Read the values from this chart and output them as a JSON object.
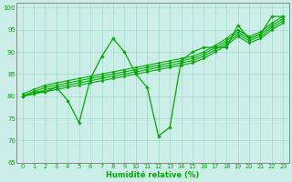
{
  "xlabel": "Humidité relative (%)",
  "xlim": [
    -0.5,
    23.5
  ],
  "ylim": [
    65,
    101
  ],
  "yticks": [
    65,
    70,
    75,
    80,
    85,
    90,
    95,
    100
  ],
  "xticks": [
    0,
    1,
    2,
    3,
    4,
    5,
    6,
    7,
    8,
    9,
    10,
    11,
    12,
    13,
    14,
    15,
    16,
    17,
    18,
    19,
    20,
    21,
    22,
    23
  ],
  "bg_color": "#cceee8",
  "grid_color": "#aaddcc",
  "line_color": "#00aa00",
  "zigzag": [
    80,
    81,
    81,
    82,
    79,
    74,
    84,
    89,
    93,
    90,
    85,
    82,
    71,
    73,
    88,
    90,
    91,
    91,
    91,
    96,
    93,
    94,
    98,
    98
  ],
  "trend_lines": [
    [
      80.5,
      81.5,
      82.5,
      83.0,
      83.5,
      84.0,
      84.5,
      85.0,
      85.5,
      86.0,
      86.5,
      87.0,
      87.5,
      88.0,
      88.5,
      89.0,
      90.0,
      91.5,
      93.0,
      95.0,
      93.5,
      94.5,
      96.5,
      98.0
    ],
    [
      80.0,
      81.0,
      82.0,
      82.5,
      83.0,
      83.5,
      84.0,
      84.5,
      85.0,
      85.5,
      86.0,
      86.5,
      87.0,
      87.5,
      88.0,
      88.5,
      89.5,
      91.0,
      92.5,
      94.5,
      93.0,
      94.0,
      96.0,
      97.5
    ],
    [
      80.0,
      80.5,
      81.5,
      82.0,
      82.5,
      83.0,
      83.5,
      84.0,
      84.5,
      85.0,
      85.5,
      86.0,
      86.5,
      87.0,
      87.5,
      88.0,
      89.0,
      90.5,
      92.0,
      94.0,
      92.5,
      93.5,
      95.5,
      97.0
    ],
    [
      80.0,
      80.5,
      81.0,
      81.5,
      82.0,
      82.5,
      83.0,
      83.5,
      84.0,
      84.5,
      85.0,
      85.5,
      86.0,
      86.5,
      87.0,
      87.5,
      88.5,
      90.0,
      91.5,
      93.5,
      92.0,
      93.0,
      95.0,
      96.5
    ]
  ]
}
